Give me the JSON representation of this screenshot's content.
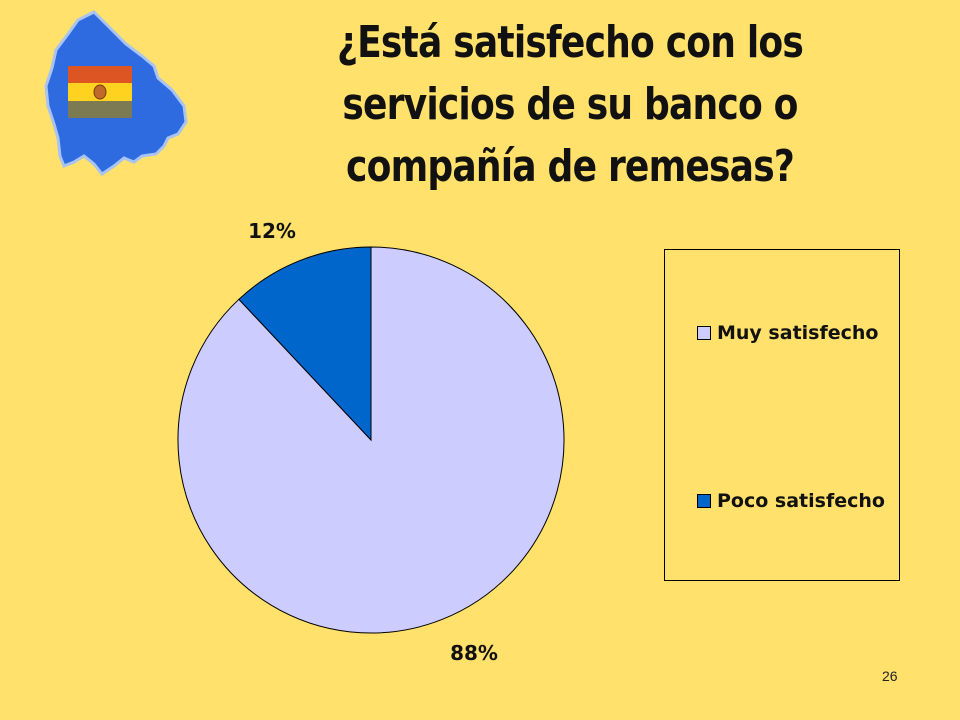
{
  "title": "¿Está satisfecho con los servicios de su banco o compañía de remesas?",
  "slide_number": "26",
  "colors": {
    "background": "#FFE16B",
    "muy_satisfecho": "#CCCCFF",
    "poco_satisfecho": "#0066CC",
    "logo_blue": "#2E6BE0",
    "flag_red": "#DD5522",
    "flag_yellow": "#FFD21F",
    "flag_green": "#7B7A52"
  },
  "logo": {
    "icon": "bolivia-map-flag-icon"
  },
  "chart_data": {
    "type": "pie",
    "title": "¿Está satisfecho con los servicios de su banco o compañía de remesas?",
    "slices": [
      {
        "label": "Muy satisfecho",
        "value": 88,
        "display": "88%",
        "color": "#CCCCFF"
      },
      {
        "label": "Poco satisfecho",
        "value": 12,
        "display": "12%",
        "color": "#0066CC"
      }
    ],
    "legend_position": "right"
  },
  "legend": {
    "items": [
      {
        "label": "Muy satisfecho",
        "color": "#CCCCFF"
      },
      {
        "label": "Poco satisfecho",
        "color": "#0066CC"
      }
    ]
  }
}
